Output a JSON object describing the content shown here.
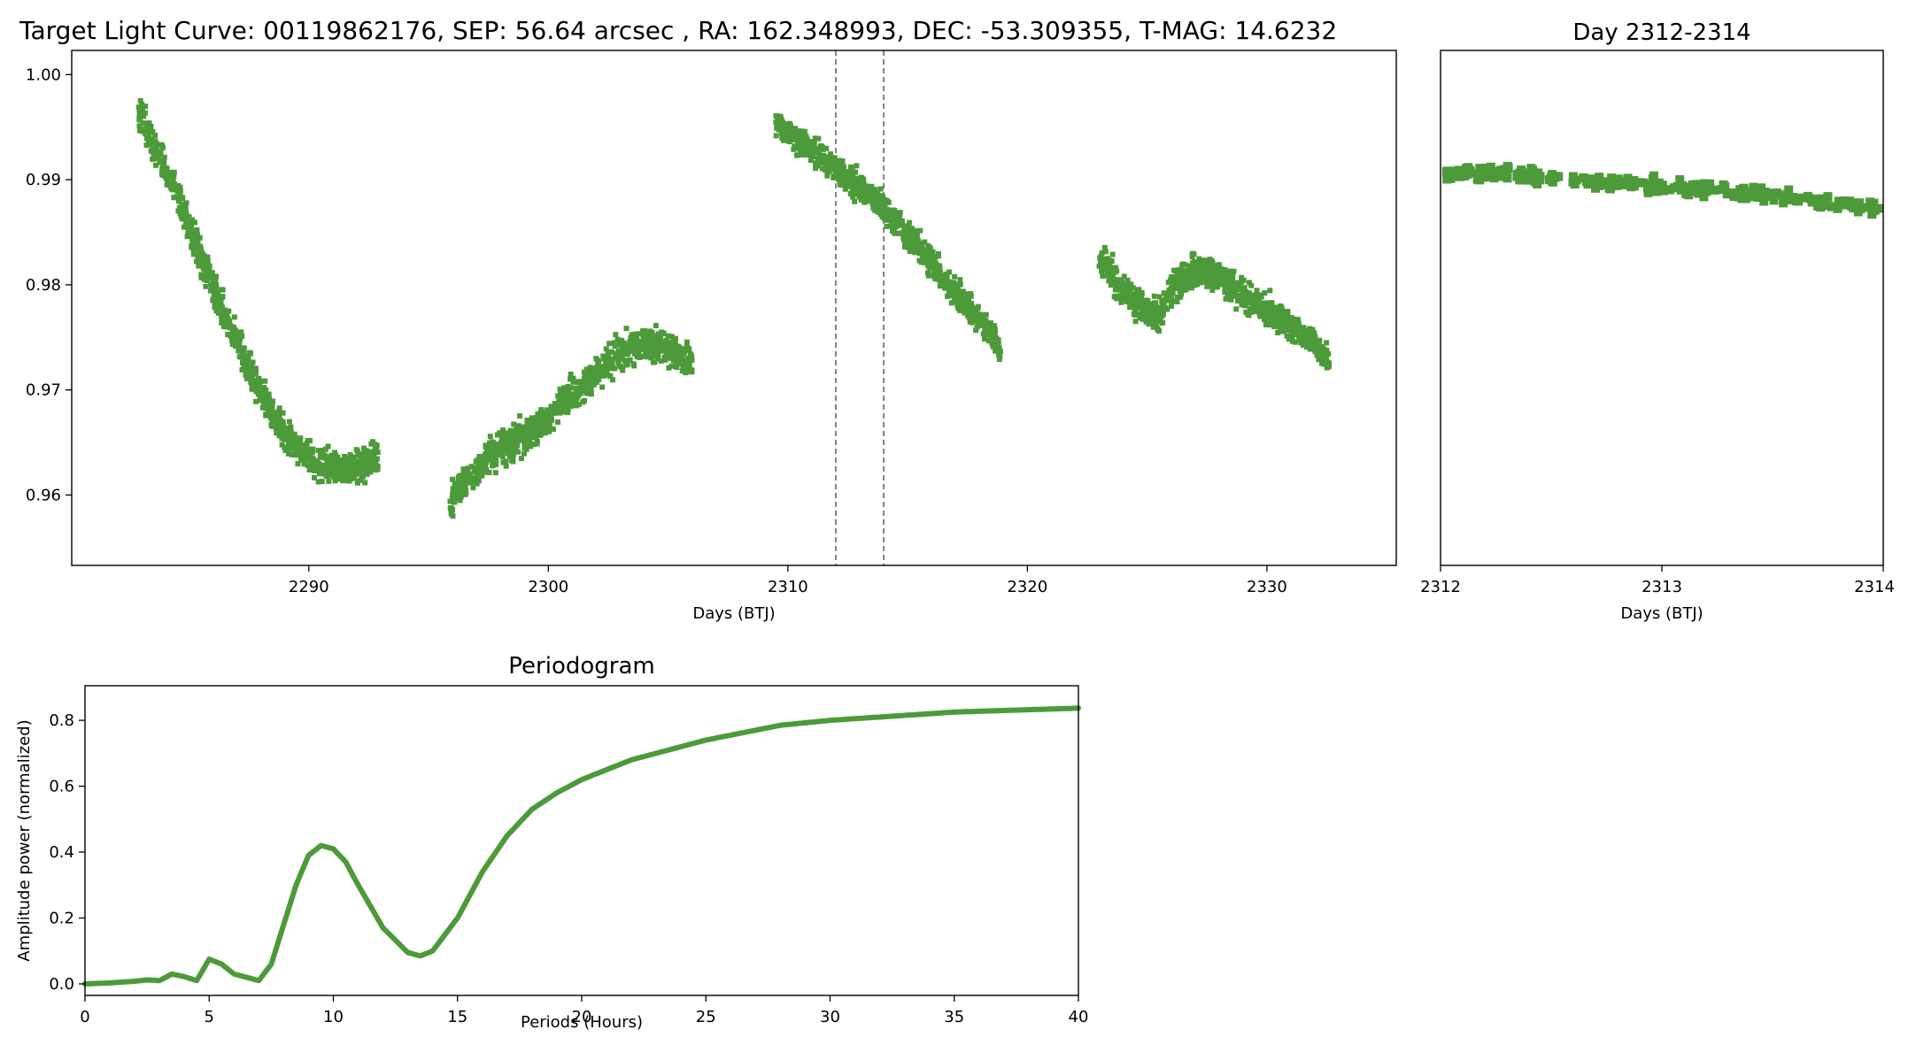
{
  "colors": {
    "points": "#4d9a3a",
    "line": "#4d9a3a",
    "marker_line": "#444444"
  },
  "chart_data": [
    {
      "type": "scatter",
      "title": "Target Light Curve: 00119862176, SEP: 56.64 arcsec , RA: 162.348993, DEC: -53.309355, T-MAG: 14.6232",
      "xlabel": "Days (BTJ)",
      "ylabel": "",
      "xlim": [
        2280.1,
        2335.4
      ],
      "ylim": [
        0.9533,
        1.0023
      ],
      "xticks": [
        "2290",
        "2300",
        "2310",
        "2320",
        "2330"
      ],
      "yticks": [
        "0.96",
        "0.97",
        "0.98",
        "0.99",
        "1.00"
      ],
      "vlines": [
        2312,
        2314
      ],
      "segments": [
        {
          "name": "",
          "x": [
            2282.9,
            2283.5,
            2284.5,
            2285.5,
            2286.5,
            2287.5,
            2288.5,
            2289.5,
            2290.5,
            2291.5,
            2292.9
          ],
          "y": [
            0.9965,
            0.9935,
            0.9885,
            0.9825,
            0.977,
            0.972,
            0.9675,
            0.9645,
            0.963,
            0.9625,
            0.9635
          ],
          "spread": 0.003
        },
        {
          "name": "",
          "x": [
            2295.9,
            2297,
            2298,
            2299,
            2300,
            2301,
            2302,
            2303,
            2304,
            2305,
            2306
          ],
          "y": [
            0.9595,
            0.9625,
            0.9645,
            0.9655,
            0.9675,
            0.9695,
            0.9715,
            0.9735,
            0.9745,
            0.974,
            0.9725
          ],
          "spread": 0.003
        },
        {
          "name": "",
          "x": [
            2309.5,
            2310.5,
            2311.5,
            2312.5,
            2313.5,
            2314.5,
            2315.5,
            2316.5,
            2317.5,
            2318.5,
            2318.9
          ],
          "y": [
            0.9955,
            0.9935,
            0.992,
            0.99,
            0.9885,
            0.986,
            0.9835,
            0.9805,
            0.978,
            0.9755,
            0.9735
          ],
          "spread": 0.0025
        },
        {
          "name": "",
          "x": [
            2323,
            2324,
            2325,
            2325.5,
            2326,
            2327,
            2328,
            2329,
            2330,
            2331,
            2332,
            2332.6
          ],
          "y": [
            0.9825,
            0.9795,
            0.9775,
            0.977,
            0.9795,
            0.9815,
            0.981,
            0.979,
            0.9775,
            0.976,
            0.9745,
            0.9725
          ],
          "spread": 0.0028
        }
      ]
    },
    {
      "type": "scatter",
      "title": "Day 2312-2314",
      "xlabel": "Days (BTJ)",
      "ylabel": "",
      "xlim": [
        2312,
        2314
      ],
      "ylim": [
        0.9533,
        1.0023
      ],
      "xticks": [
        "2312",
        "2313",
        "2314"
      ],
      "yticks": [],
      "x": [
        2312,
        2312.25,
        2312.5,
        2312.75,
        2313,
        2313.25,
        2313.5,
        2313.75,
        2314
      ],
      "y": [
        0.9905,
        0.9905,
        0.9902,
        0.9898,
        0.9895,
        0.989,
        0.9885,
        0.9878,
        0.9872
      ],
      "spread": 0.0016
    },
    {
      "type": "line",
      "title": "Periodogram",
      "xlabel": "Periods (Hours)",
      "ylabel": "Amplitude power (normalized)",
      "xlim": [
        0,
        40
      ],
      "ylim": [
        -0.035,
        0.905
      ],
      "xticks": [
        "0",
        "5",
        "10",
        "15",
        "20",
        "25",
        "30",
        "35",
        "40"
      ],
      "yticks": [
        "0.0",
        "0.2",
        "0.4",
        "0.6",
        "0.8"
      ],
      "x": [
        0,
        1,
        2,
        2.5,
        3,
        3.5,
        4,
        4.5,
        5,
        5.5,
        6,
        7,
        7.5,
        8,
        8.5,
        9,
        9.5,
        10,
        10.5,
        11,
        12,
        13,
        13.5,
        14,
        15,
        16,
        17,
        18,
        19,
        20,
        22,
        25,
        28,
        30,
        35,
        40
      ],
      "y": [
        0.0,
        0.003,
        0.008,
        0.012,
        0.01,
        0.03,
        0.022,
        0.01,
        0.075,
        0.06,
        0.03,
        0.01,
        0.06,
        0.18,
        0.3,
        0.39,
        0.42,
        0.41,
        0.37,
        0.3,
        0.17,
        0.095,
        0.085,
        0.1,
        0.2,
        0.34,
        0.45,
        0.53,
        0.58,
        0.62,
        0.68,
        0.74,
        0.785,
        0.8,
        0.825,
        0.837
      ]
    }
  ]
}
